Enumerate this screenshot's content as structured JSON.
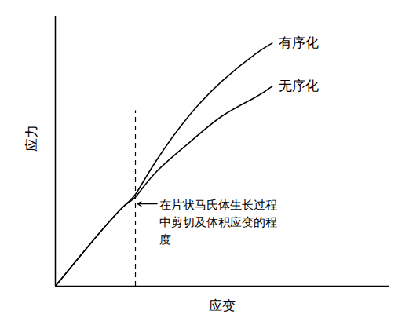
{
  "chart_data": {
    "type": "line",
    "x_label": "应变",
    "y_label": "应力",
    "x": [
      0,
      1,
      2,
      2.4,
      3,
      4,
      5,
      6,
      6.5
    ],
    "series": [
      {
        "name": "有序化",
        "color": "#000000",
        "values": [
          0,
          1.5,
          2.9,
          3.4,
          4.6,
          6.3,
          7.6,
          8.6,
          9.0
        ]
      },
      {
        "name": "无序化",
        "color": "#000000",
        "values": [
          0,
          1.5,
          2.9,
          3.3,
          4.2,
          5.3,
          6.3,
          7.0,
          7.4
        ]
      }
    ],
    "xlim": [
      0,
      10
    ],
    "ylim": [
      0,
      10
    ],
    "xticks": [],
    "yticks": [],
    "tick_labels": false,
    "grid": false,
    "annotation": {
      "x": 2.4,
      "text": "在片状马氏体生长过程中剪切及体积应变的程度",
      "line_style": "dashed"
    }
  }
}
